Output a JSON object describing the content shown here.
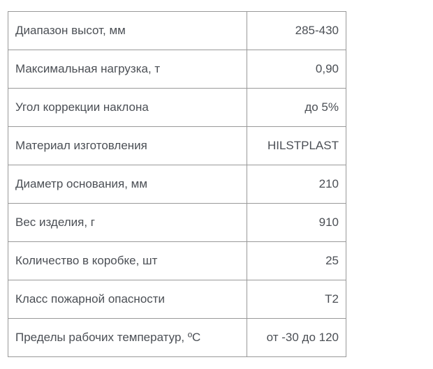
{
  "table": {
    "name": "product-specifications",
    "colors": {
      "text": "#4b4f55",
      "border": "#999999",
      "background": "#ffffff"
    },
    "rows": [
      {
        "label": "Диапазон высот, мм",
        "value": "285-430"
      },
      {
        "label": "Максимальная нагрузка, т",
        "value": "0,90"
      },
      {
        "label": "Угол коррекции наклона",
        "value": "до 5%"
      },
      {
        "label": "Материал изготовления",
        "value": "HILSTPLAST"
      },
      {
        "label": "Диаметр основания, мм",
        "value": "210"
      },
      {
        "label": "Вес изделия, г",
        "value": "910"
      },
      {
        "label": "Количество в коробке, шт",
        "value": "25"
      },
      {
        "label": "Класс пожарной опасности",
        "value": "Т2"
      },
      {
        "label": "Пределы рабочих температур, ºС",
        "value": "от -30 до 120"
      }
    ]
  }
}
